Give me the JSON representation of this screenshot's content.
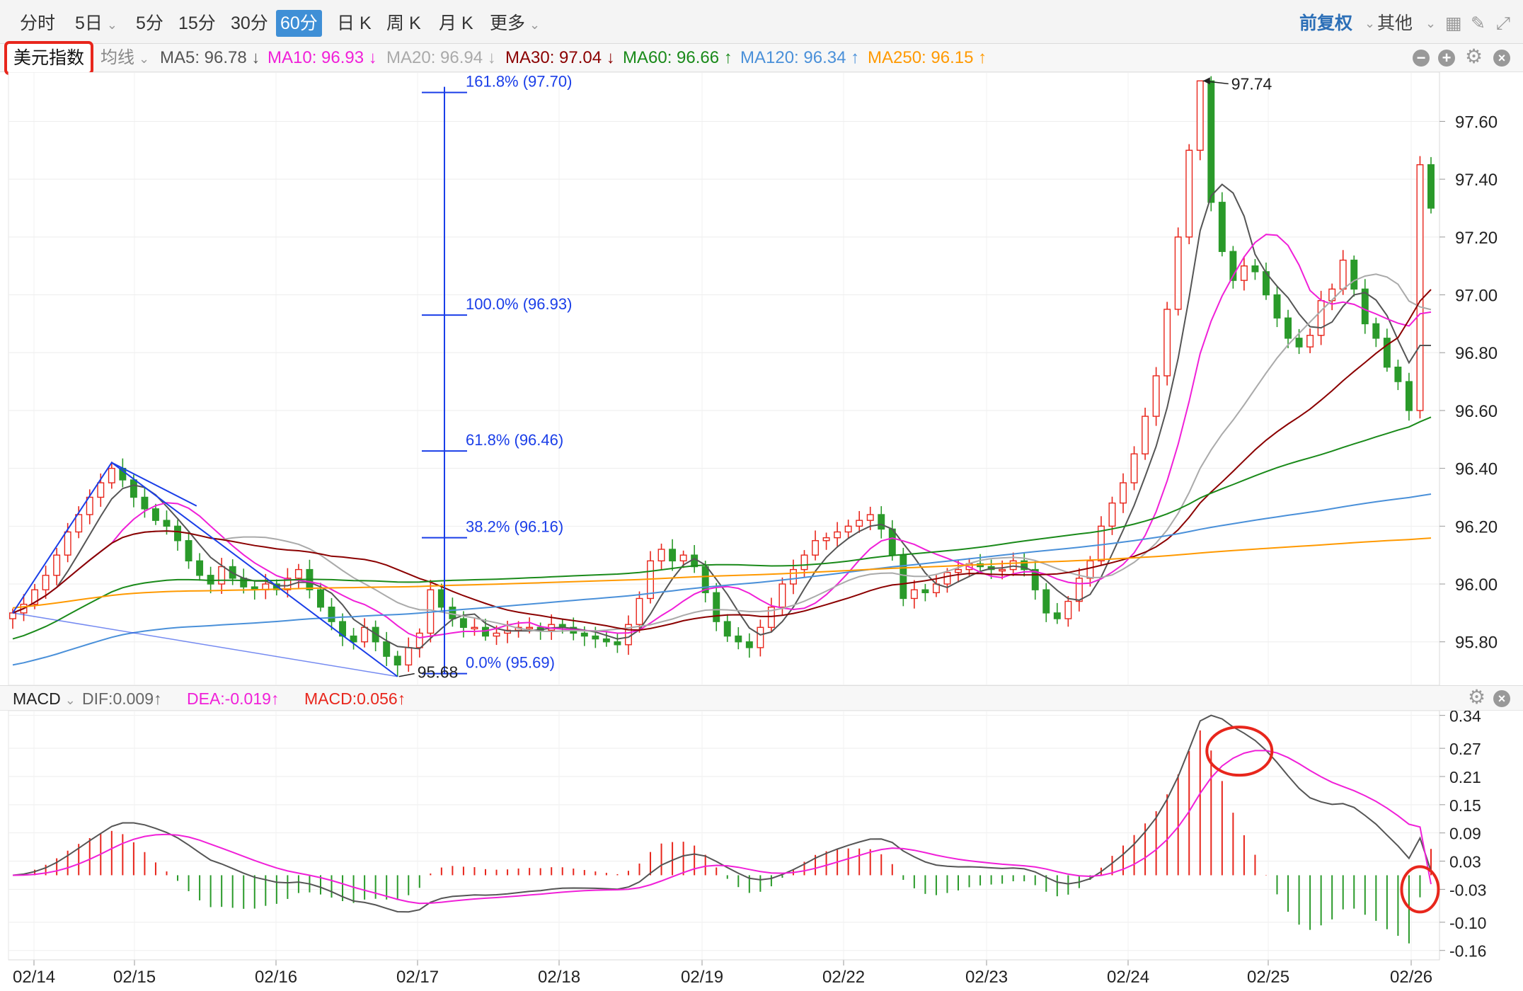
{
  "toolbar": {
    "tabs": [
      {
        "label": "分时",
        "dropdown": false,
        "active": false
      },
      {
        "label": "5日",
        "dropdown": true,
        "active": false
      },
      {
        "label": "5分",
        "dropdown": false,
        "active": false
      },
      {
        "label": "15分",
        "dropdown": false,
        "active": false
      },
      {
        "label": "30分",
        "dropdown": false,
        "active": false
      },
      {
        "label": "60分",
        "dropdown": false,
        "active": true
      },
      {
        "label": "日 K",
        "dropdown": false,
        "active": false
      },
      {
        "label": "周 K",
        "dropdown": false,
        "active": false
      },
      {
        "label": "月 K",
        "dropdown": false,
        "active": false
      },
      {
        "label": "更多",
        "dropdown": true,
        "active": false
      }
    ],
    "right": {
      "adjust": "前复权",
      "other": "其他"
    }
  },
  "indicator_bar": {
    "symbol": "美元指数",
    "ma_menu": "均线",
    "ma_items": [
      {
        "text": "MA5: 96.78 ↓",
        "color": "#555555"
      },
      {
        "text": "MA10: 96.93 ↓",
        "color": "#f020d8"
      },
      {
        "text": "MA20: 96.94 ↓",
        "color": "#aaaaaa"
      },
      {
        "text": "MA30: 97.04 ↓",
        "color": "#8b0000"
      },
      {
        "text": "MA60: 96.66 ↑",
        "color": "#1a8a1a"
      },
      {
        "text": "MA120: 96.34 ↑",
        "color": "#4a90d9"
      },
      {
        "text": "MA250: 96.15 ↑",
        "color": "#ff9900"
      }
    ]
  },
  "macd_bar": {
    "title": "MACD",
    "dif": "DIF:0.009↑",
    "dea": "DEA:-0.019↑",
    "macd": "MACD:0.056↑"
  },
  "colors": {
    "up": "#e8261c",
    "down": "#2a9a2a",
    "fib": "#1a3ee8",
    "accent": "#3f8fd6",
    "annotation": "#e8261c"
  },
  "chart_data": [
    {
      "type": "candlestick",
      "title": "美元指数 60分",
      "yticks": [
        95.8,
        96.0,
        96.2,
        96.4,
        96.6,
        96.8,
        97.0,
        97.2,
        97.4,
        97.6
      ],
      "ytick_labels": [
        "95.80",
        "96.00",
        "96.20",
        "96.40",
        "96.60",
        "96.80",
        "97.00",
        "97.20",
        "97.40",
        "97.60"
      ],
      "ylim": [
        95.65,
        97.77
      ],
      "x_labels": [
        "02/14",
        "02/15",
        "02/16",
        "02/17",
        "02/18",
        "02/19",
        "02/22",
        "02/23",
        "02/24",
        "02/25",
        "02/26"
      ],
      "high_marker": {
        "label": "97.74",
        "value": 97.74
      },
      "low_marker": {
        "label": "95.68",
        "value": 95.68
      },
      "fib_levels": [
        {
          "label": "161.8% (97.70)",
          "value": 97.7
        },
        {
          "label": "100.0% (96.93)",
          "value": 96.93
        },
        {
          "label": "61.8% (96.46)",
          "value": 96.46
        },
        {
          "label": "38.2% (96.16)",
          "value": 96.16
        },
        {
          "label": "0.0% (95.69)",
          "value": 95.69
        }
      ],
      "series_close": [
        95.9,
        95.93,
        95.98,
        96.03,
        96.1,
        96.18,
        96.24,
        96.3,
        96.35,
        96.4,
        96.36,
        96.3,
        96.26,
        96.22,
        96.2,
        96.15,
        96.08,
        96.03,
        96.0,
        96.06,
        96.02,
        95.99,
        95.98,
        96.0,
        95.98,
        96.02,
        96.05,
        95.98,
        95.92,
        95.87,
        95.82,
        95.8,
        95.85,
        95.8,
        95.75,
        95.72,
        95.78,
        95.83,
        95.98,
        95.92,
        95.88,
        95.85,
        95.85,
        95.82,
        95.83,
        95.84,
        95.85,
        95.85,
        95.84,
        95.86,
        95.85,
        95.83,
        95.82,
        95.81,
        95.8,
        95.79,
        95.86,
        95.95,
        96.08,
        96.12,
        96.08,
        96.1,
        96.06,
        95.97,
        95.87,
        95.82,
        95.8,
        95.78,
        95.85,
        95.92,
        96.0,
        96.05,
        96.1,
        96.15,
        96.16,
        96.18,
        96.2,
        96.22,
        96.24,
        96.19,
        96.1,
        95.95,
        95.98,
        95.97,
        96.0,
        96.04,
        96.05,
        96.07,
        96.06,
        96.05,
        96.05,
        96.08,
        96.05,
        95.98,
        95.9,
        95.88,
        95.94,
        96.02,
        96.08,
        96.2,
        96.28,
        96.35,
        96.45,
        96.58,
        96.72,
        96.95,
        97.2,
        97.5,
        97.74,
        97.32,
        97.15,
        97.05,
        97.1,
        97.08,
        97.0,
        96.92,
        96.85,
        96.82,
        96.86,
        96.98,
        97.02,
        97.12,
        97.02,
        96.9,
        96.85,
        96.75,
        96.7,
        96.6,
        97.45,
        97.3
      ],
      "moving_averages": [
        {
          "name": "MA5",
          "value": 96.78
        },
        {
          "name": "MA10",
          "value": 96.93
        },
        {
          "name": "MA20",
          "value": 96.94
        },
        {
          "name": "MA30",
          "value": 97.04
        },
        {
          "name": "MA60",
          "value": 96.66
        },
        {
          "name": "MA120",
          "value": 96.34
        },
        {
          "name": "MA250",
          "value": 96.15
        }
      ]
    },
    {
      "type": "macd",
      "yticks": [
        0.34,
        0.27,
        0.21,
        0.15,
        0.09,
        0.03,
        -0.03,
        -0.1,
        -0.16
      ],
      "ytick_labels": [
        "0.34",
        "0.27",
        "0.21",
        "0.15",
        "0.09",
        "0.03",
        "-0.03",
        "-0.10",
        "-0.16"
      ],
      "ylim": [
        -0.18,
        0.35
      ],
      "dif": 0.009,
      "dea": -0.019,
      "macd": 0.056
    }
  ]
}
